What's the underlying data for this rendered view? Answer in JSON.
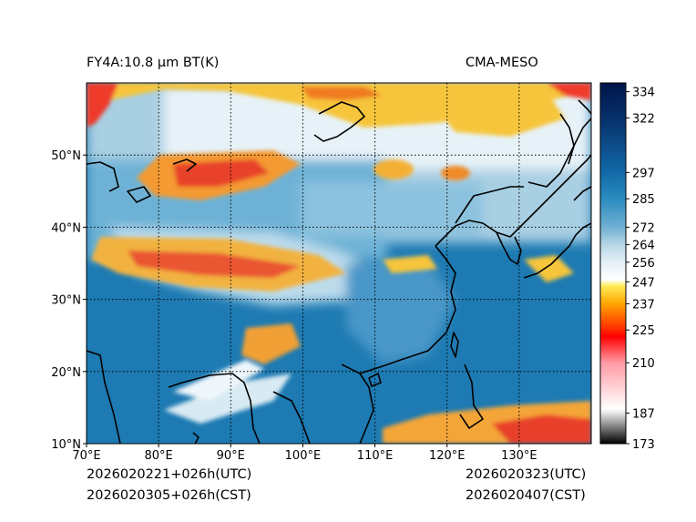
{
  "header": {
    "title": "FY4A:10.8 µm BT(K)",
    "model": "CMA-MESO"
  },
  "footer": {
    "init_utc": "2026020221+026h(UTC)",
    "init_cst": "2026020305+026h(CST)",
    "valid_utc": "2026020323(UTC)",
    "valid_cst": "2026020407(CST)"
  },
  "map": {
    "lon_range": [
      70,
      140
    ],
    "lat_range": [
      10,
      60
    ],
    "lon_ticks": [
      {
        "value": 70,
        "label": "70°E"
      },
      {
        "value": 80,
        "label": "80°E"
      },
      {
        "value": 90,
        "label": "90°E"
      },
      {
        "value": 100,
        "label": "100°E"
      },
      {
        "value": 110,
        "label": "110°E"
      },
      {
        "value": 120,
        "label": "120°E"
      },
      {
        "value": 130,
        "label": "130°E"
      }
    ],
    "lat_ticks": [
      {
        "value": 10,
        "label": "10°N"
      },
      {
        "value": 20,
        "label": "20°N"
      },
      {
        "value": 30,
        "label": "30°N"
      },
      {
        "value": 40,
        "label": "40°N"
      },
      {
        "value": 50,
        "label": "50°N"
      }
    ],
    "gridlines": "dotted"
  },
  "colorbar": {
    "range": [
      173,
      338
    ],
    "tick_labels": [
      "334",
      "322",
      "297",
      "285",
      "272",
      "264",
      "256",
      "247",
      "237",
      "225",
      "210",
      "187",
      "173"
    ],
    "ticks": [
      334,
      322,
      297,
      285,
      272,
      264,
      256,
      247,
      237,
      225,
      210,
      187,
      173
    ],
    "stops": [
      {
        "value": 173,
        "color": "#000000"
      },
      {
        "value": 187,
        "color": "#e6e6e6"
      },
      {
        "value": 189,
        "color": "#ffffff"
      },
      {
        "value": 210,
        "color": "#ff9aa5"
      },
      {
        "value": 222,
        "color": "#ff0000"
      },
      {
        "value": 226,
        "color": "#ff3300"
      },
      {
        "value": 237,
        "color": "#ffa500"
      },
      {
        "value": 245,
        "color": "#ffeb55"
      },
      {
        "value": 248,
        "color": "#ffffff"
      },
      {
        "value": 256,
        "color": "#e4f0f7"
      },
      {
        "value": 264,
        "color": "#b8d6e6"
      },
      {
        "value": 272,
        "color": "#6fb0d2"
      },
      {
        "value": 285,
        "color": "#2b8cbe"
      },
      {
        "value": 297,
        "color": "#1269a8"
      },
      {
        "value": 322,
        "color": "#06306a"
      },
      {
        "value": 338,
        "color": "#00154a"
      }
    ]
  },
  "colors": {
    "sea": "#1c78b0",
    "land": "#5ea8cf",
    "cloud_cold": "#f8c832",
    "cloud_very_cold": "#f0402a"
  }
}
